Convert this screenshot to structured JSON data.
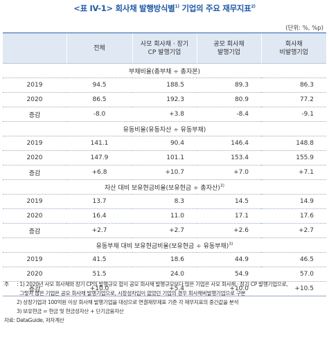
{
  "title": {
    "open": "<표 IV-1>",
    "text": " 회사채 발행방식별",
    "sup": "1)",
    "text2": " 기업의 주요 재무지표",
    "sup2": "2)"
  },
  "unit": "(단위: %, %p)",
  "columns": [
    {
      "line1": "",
      "line2": ""
    },
    {
      "line1": "전체",
      "line2": ""
    },
    {
      "line1": "사모 회사채 · 장기",
      "line2": "CP 발행기업"
    },
    {
      "line1": "공모 회사채",
      "line2": "발행기업"
    },
    {
      "line1": "회사채",
      "line2": "비발행기업"
    }
  ],
  "sections": [
    {
      "title": "부채비율(총부채 ÷ 총자본)",
      "sup": "",
      "rows": [
        {
          "label": "2019",
          "values": [
            "94.5",
            "188.5",
            "89.3",
            "86.3"
          ]
        },
        {
          "label": "2020",
          "values": [
            "86.5",
            "192.3",
            "80.9",
            "77.2"
          ]
        },
        {
          "label": "증감",
          "values": [
            "-8.0",
            "+3.8",
            "-8.4",
            "-9.1"
          ]
        }
      ]
    },
    {
      "title": "유동비율(유동자산 ÷ 유동부채)",
      "sup": "",
      "rows": [
        {
          "label": "2019",
          "values": [
            "141.1",
            "90.4",
            "146.4",
            "148.8"
          ]
        },
        {
          "label": "2020",
          "values": [
            "147.9",
            "101.1",
            "153.4",
            "155.9"
          ]
        },
        {
          "label": "증감",
          "values": [
            "+6.8",
            "+10.7",
            "+7.0",
            "+7.1"
          ]
        }
      ]
    },
    {
      "title": "자산 대비 보유현금비율(보유현금 ÷ 총자산)",
      "sup": "3)",
      "rows": [
        {
          "label": "2019",
          "values": [
            "13.7",
            "8.3",
            "14.5",
            "14.9"
          ]
        },
        {
          "label": "2020",
          "values": [
            "16.4",
            "11.0",
            "17.1",
            "17.6"
          ]
        },
        {
          "label": "증감",
          "values": [
            "+2.7",
            "+2.7",
            "+2.6",
            "+2.7"
          ]
        }
      ]
    },
    {
      "title": "유동부채 대비 보유현금비율(보유현금 ÷ 유동부채)",
      "sup": "3)",
      "rows": [
        {
          "label": "2019",
          "values": [
            "41.5",
            "18.6",
            "44.9",
            "46.5"
          ]
        },
        {
          "label": "2020",
          "values": [
            "51.5",
            "24.0",
            "54.9",
            "57.0"
          ]
        },
        {
          "label": "증감",
          "values": [
            "+10.0",
            "+5.4",
            "+10.0",
            "+10.5"
          ]
        }
      ]
    }
  ],
  "notes": {
    "lead": "주",
    "n1a": ": 1) 2020년 사모 회사채와 장기 CP의 발행규모 합이 공모 회사채 발행규모보다 많은 기업은 사모 회사채 · 장기 CP 발행기업으로,",
    "n1b": "그렇지 않은 기업은 공모 회사채 발행기업으로, 시장성차입이 없었던 기업의 경우 회사채비발행기업으로 구분",
    "n2": "2) 상장기업과 100억원 이상 회사채 발행기업을 대상으로 연결재무제표 기준 각 재무지표의 중간값을 분석",
    "n3": "3) 보유현금 = 현금 및 현금성자산 + 단기금융자산",
    "source": "자료: DataGuide, 저자계산"
  }
}
